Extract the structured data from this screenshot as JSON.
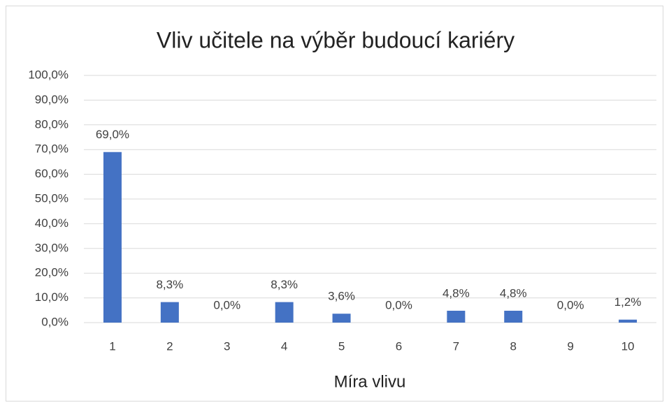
{
  "chart_data": {
    "type": "bar",
    "title": "Vliv učitele na výběr budoucí kariéry",
    "x_label": "Míra vlivu",
    "categories": [
      "1",
      "2",
      "3",
      "4",
      "5",
      "6",
      "7",
      "8",
      "9",
      "10"
    ],
    "values": [
      69.0,
      8.3,
      0.0,
      8.3,
      3.6,
      0.0,
      4.8,
      4.8,
      0.0,
      1.2
    ],
    "value_labels": [
      "69,0%",
      "8,3%",
      "0,0%",
      "8,3%",
      "3,6%",
      "0,0%",
      "4,8%",
      "4,8%",
      "0,0%",
      "1,2%"
    ],
    "color": "#4472c4",
    "ylim": [
      0,
      100
    ],
    "yticks": [
      {
        "value": 0,
        "label": "0,0%"
      },
      {
        "value": 10,
        "label": "10,0%"
      },
      {
        "value": 20,
        "label": "20,0%"
      },
      {
        "value": 30,
        "label": "30,0%"
      },
      {
        "value": 40,
        "label": "40,0%"
      },
      {
        "value": 50,
        "label": "50,0%"
      },
      {
        "value": 60,
        "label": "60,0%"
      },
      {
        "value": 70,
        "label": "70,0%"
      },
      {
        "value": 80,
        "label": "80,0%"
      },
      {
        "value": 90,
        "label": "90,0%"
      },
      {
        "value": 100,
        "label": "100,0%"
      }
    ],
    "grid": true
  }
}
